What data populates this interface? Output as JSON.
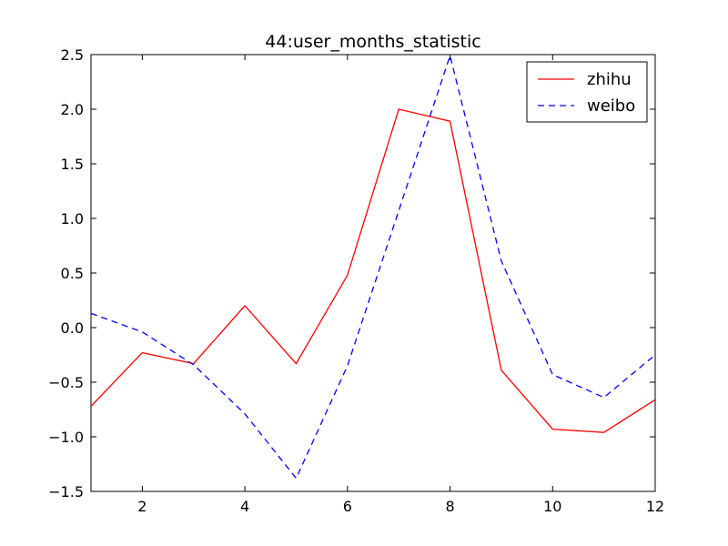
{
  "chart_data": {
    "type": "line",
    "title": "44:user_months_statistic",
    "xlabel": "",
    "ylabel": "",
    "xlim": [
      1,
      12
    ],
    "ylim": [
      -1.5,
      2.5
    ],
    "x_ticks": [
      2,
      4,
      6,
      8,
      10,
      12
    ],
    "y_ticks": [
      -1.5,
      -1.0,
      -0.5,
      0.0,
      0.5,
      1.0,
      1.5,
      2.0,
      2.5
    ],
    "y_tick_labels": [
      "−1.5",
      "−1.0",
      "−0.5",
      "0.0",
      "0.5",
      "1.0",
      "1.5",
      "2.0",
      "2.5"
    ],
    "x_tick_labels": [
      "2",
      "4",
      "6",
      "8",
      "10",
      "12"
    ],
    "x": [
      1,
      2,
      3,
      4,
      5,
      6,
      7,
      8,
      9,
      10,
      11,
      12
    ],
    "grid": false,
    "legend_position": "top-right",
    "series": [
      {
        "name": "zhihu",
        "color": "#ff0000",
        "style": "solid",
        "values": [
          -0.72,
          -0.23,
          -0.33,
          0.2,
          -0.33,
          0.48,
          2.0,
          1.89,
          -0.39,
          -0.93,
          -0.96,
          -0.66
        ]
      },
      {
        "name": "weibo",
        "color": "#0000ff",
        "style": "dashed",
        "values": [
          0.13,
          -0.04,
          -0.34,
          -0.79,
          -1.38,
          -0.35,
          1.07,
          2.49,
          0.61,
          -0.43,
          -0.64,
          -0.25
        ]
      }
    ]
  }
}
